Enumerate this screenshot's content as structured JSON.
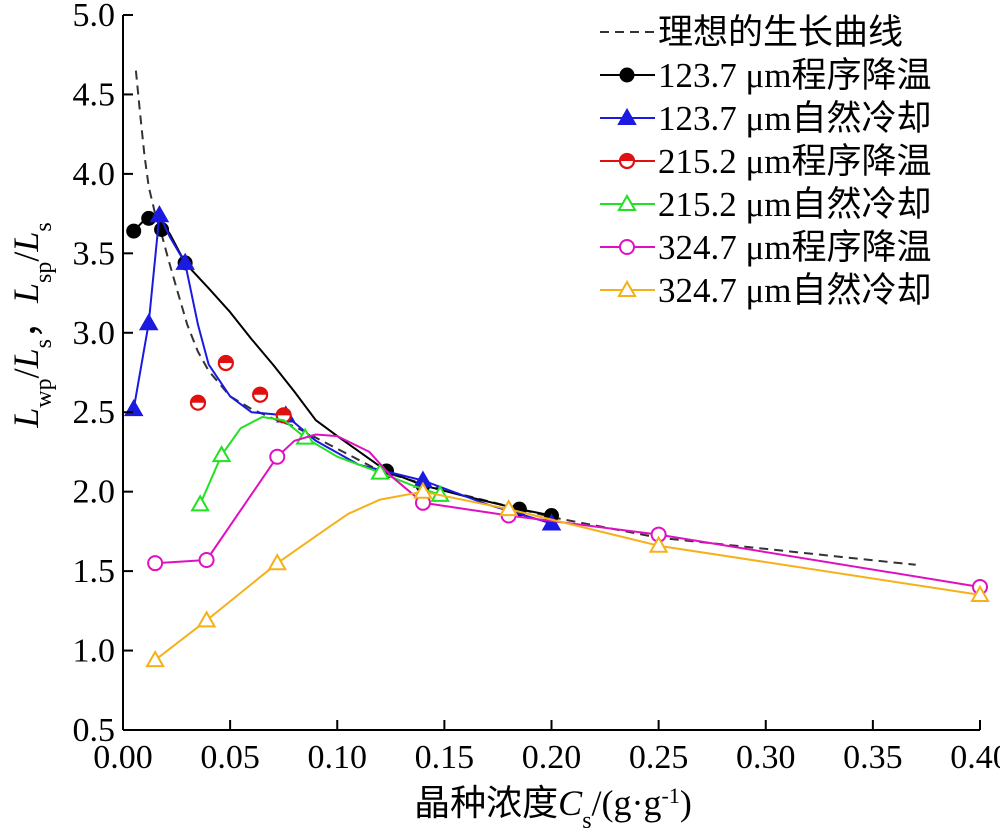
{
  "chart_data": {
    "type": "line",
    "xlabel_prefix": "晶种浓度",
    "xlabel_var": "C",
    "xlabel_sub": "s",
    "xlabel_unit": "/(g·g",
    "xlabel_sup": "-1",
    "xlabel_close": ")",
    "ylabel_parts": [
      {
        "t": "L",
        "italic": true
      },
      {
        "t": "wp",
        "sub": true
      },
      {
        "t": "/"
      },
      {
        "t": "L",
        "italic": true
      },
      {
        "t": "s",
        "sub": true
      },
      {
        "t": "，"
      },
      {
        "t": "L",
        "italic": true
      },
      {
        "t": "sp",
        "sub": true
      },
      {
        "t": "/"
      },
      {
        "t": "L",
        "italic": true
      },
      {
        "t": "s",
        "sub": true
      }
    ],
    "xlim": [
      0.0,
      0.4
    ],
    "ylim": [
      0.5,
      5.0
    ],
    "xticks": [
      "0.00",
      "0.05",
      "0.10",
      "0.15",
      "0.20",
      "0.25",
      "0.30",
      "0.35",
      "0.40"
    ],
    "yticks": [
      "0.5",
      "1.0",
      "1.5",
      "2.0",
      "2.5",
      "3.0",
      "3.5",
      "4.0",
      "4.5",
      "5.0"
    ],
    "grid": false,
    "legend_position": "top-right",
    "series": [
      {
        "name": "理想的生长曲线",
        "color": "#333333",
        "dash": true,
        "marker": "none",
        "points": [
          [
            0.006,
            4.65
          ],
          [
            0.008,
            4.38
          ],
          [
            0.01,
            4.12
          ],
          [
            0.012,
            3.92
          ],
          [
            0.015,
            3.75
          ],
          [
            0.018,
            3.62
          ],
          [
            0.021,
            3.47
          ],
          [
            0.025,
            3.28
          ],
          [
            0.03,
            3.05
          ],
          [
            0.035,
            2.88
          ],
          [
            0.04,
            2.76
          ],
          [
            0.05,
            2.6
          ],
          [
            0.06,
            2.52
          ],
          [
            0.07,
            2.46
          ],
          [
            0.08,
            2.41
          ],
          [
            0.1,
            2.27
          ],
          [
            0.12,
            2.13
          ],
          [
            0.15,
            2.01
          ],
          [
            0.2,
            1.84
          ],
          [
            0.25,
            1.71
          ],
          [
            0.3,
            1.64
          ],
          [
            0.37,
            1.54
          ]
        ]
      },
      {
        "name": "123.7 μm程序降温",
        "color": "#000000",
        "marker": "filled-circle",
        "points": [
          [
            0.005,
            3.64
          ],
          [
            0.012,
            3.72
          ],
          [
            0.018,
            3.65
          ],
          [
            0.029,
            3.44
          ],
          [
            0.123,
            2.13
          ],
          [
            0.14,
            2.04
          ],
          [
            0.185,
            1.89
          ],
          [
            0.2,
            1.85
          ]
        ],
        "curve": [
          [
            0.005,
            3.64
          ],
          [
            0.01,
            3.71
          ],
          [
            0.014,
            3.72
          ],
          [
            0.018,
            3.7
          ],
          [
            0.022,
            3.62
          ],
          [
            0.029,
            3.44
          ],
          [
            0.04,
            3.28
          ],
          [
            0.05,
            3.13
          ],
          [
            0.06,
            2.96
          ],
          [
            0.07,
            2.8
          ],
          [
            0.08,
            2.63
          ],
          [
            0.09,
            2.45
          ],
          [
            0.1,
            2.35
          ],
          [
            0.123,
            2.13
          ],
          [
            0.14,
            2.04
          ],
          [
            0.16,
            1.97
          ],
          [
            0.185,
            1.89
          ],
          [
            0.2,
            1.85
          ]
        ]
      },
      {
        "name": "123.7 μm自然冷却",
        "color": "#1a1ae0",
        "marker": "filled-triangle",
        "points": [
          [
            0.005,
            2.52
          ],
          [
            0.012,
            3.06
          ],
          [
            0.017,
            3.74
          ],
          [
            0.029,
            3.44
          ],
          [
            0.076,
            2.48
          ],
          [
            0.14,
            2.07
          ],
          [
            0.2,
            1.8
          ]
        ],
        "curve": [
          [
            0.005,
            2.52
          ],
          [
            0.012,
            3.06
          ],
          [
            0.017,
            3.74
          ],
          [
            0.022,
            3.6
          ],
          [
            0.029,
            3.44
          ],
          [
            0.035,
            3.05
          ],
          [
            0.04,
            2.8
          ],
          [
            0.05,
            2.6
          ],
          [
            0.06,
            2.5
          ],
          [
            0.076,
            2.48
          ],
          [
            0.09,
            2.32
          ],
          [
            0.11,
            2.17
          ],
          [
            0.14,
            2.07
          ],
          [
            0.17,
            1.92
          ],
          [
            0.2,
            1.8
          ]
        ]
      },
      {
        "name": "215.2 μm程序降温",
        "color": "#e01010",
        "marker": "half-circle",
        "points": [
          [
            0.035,
            2.56
          ],
          [
            0.048,
            2.81
          ],
          [
            0.064,
            2.61
          ],
          [
            0.075,
            2.48
          ]
        ],
        "curve": []
      },
      {
        "name": "215.2 μm自然冷却",
        "color": "#22e022",
        "marker": "open-triangle",
        "points": [
          [
            0.036,
            1.92
          ],
          [
            0.046,
            2.23
          ],
          [
            0.085,
            2.34
          ],
          [
            0.12,
            2.12
          ],
          [
            0.148,
            1.98
          ]
        ],
        "curve": [
          [
            0.036,
            1.92
          ],
          [
            0.046,
            2.23
          ],
          [
            0.055,
            2.4
          ],
          [
            0.065,
            2.47
          ],
          [
            0.075,
            2.45
          ],
          [
            0.085,
            2.34
          ],
          [
            0.1,
            2.22
          ],
          [
            0.12,
            2.12
          ],
          [
            0.135,
            2.04
          ],
          [
            0.148,
            1.98
          ]
        ]
      },
      {
        "name": "324.7 μm程序降温",
        "color": "#e010c0",
        "marker": "open-circle",
        "points": [
          [
            0.015,
            1.55
          ],
          [
            0.039,
            1.57
          ],
          [
            0.072,
            2.22
          ],
          [
            0.14,
            1.93
          ],
          [
            0.18,
            1.85
          ],
          [
            0.25,
            1.73
          ],
          [
            0.4,
            1.4
          ]
        ],
        "curve": [
          [
            0.015,
            1.55
          ],
          [
            0.039,
            1.57
          ],
          [
            0.072,
            2.22
          ],
          [
            0.08,
            2.32
          ],
          [
            0.09,
            2.36
          ],
          [
            0.1,
            2.35
          ],
          [
            0.115,
            2.25
          ],
          [
            0.125,
            2.1
          ],
          [
            0.14,
            1.93
          ],
          [
            0.18,
            1.85
          ],
          [
            0.25,
            1.73
          ],
          [
            0.4,
            1.4
          ]
        ]
      },
      {
        "name": "324.7 μm自然冷却",
        "color": "#f5b01a",
        "marker": "open-triangle",
        "points": [
          [
            0.015,
            0.94
          ],
          [
            0.039,
            1.19
          ],
          [
            0.072,
            1.55
          ],
          [
            0.14,
            2.0
          ],
          [
            0.18,
            1.89
          ],
          [
            0.25,
            1.66
          ],
          [
            0.4,
            1.35
          ]
        ],
        "curve": [
          [
            0.015,
            0.94
          ],
          [
            0.039,
            1.19
          ],
          [
            0.072,
            1.55
          ],
          [
            0.09,
            1.72
          ],
          [
            0.105,
            1.86
          ],
          [
            0.12,
            1.95
          ],
          [
            0.14,
            2.0
          ],
          [
            0.18,
            1.89
          ],
          [
            0.25,
            1.66
          ],
          [
            0.4,
            1.35
          ]
        ]
      }
    ]
  }
}
